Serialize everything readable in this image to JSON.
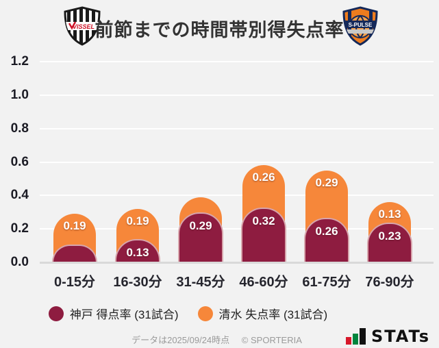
{
  "header": {
    "title": "前節までの時間帯別得失点率",
    "home_logo_text": "VISSEL",
    "away_logo_text": "S-PULSE"
  },
  "chart_data": {
    "type": "bar",
    "stacked": true,
    "title": "前節までの時間帯別得失点率",
    "categories": [
      "0-15分",
      "16-30分",
      "31-45分",
      "46-60分",
      "61-75分",
      "76-90分"
    ],
    "series": [
      {
        "name": "神戸 得点率 (31試合)",
        "color": "#8e1c40",
        "values": [
          0.1,
          0.13,
          0.29,
          0.32,
          0.26,
          0.23
        ],
        "labels": [
          null,
          "0.13",
          "0.29",
          "0.32",
          "0.26",
          "0.23"
        ]
      },
      {
        "name": "清水 失点率 (31試合)",
        "color": "#f6873a",
        "values": [
          0.19,
          0.19,
          0.1,
          0.26,
          0.29,
          0.13
        ],
        "labels": [
          "0.19",
          "0.19",
          null,
          "0.26",
          "0.29",
          "0.13"
        ]
      }
    ],
    "y_ticks": [
      "0.0",
      "0.2",
      "0.4",
      "0.6",
      "0.8",
      "1.0",
      "1.2"
    ],
    "ylim": [
      0,
      1.2
    ],
    "grid": true,
    "legend_position": "bottom"
  },
  "colors": {
    "background": "#f2f2f2",
    "grid": "#ffffff",
    "baseline": "#d9d9d9",
    "kobe_red": "#8e1c40",
    "shimizu_orange": "#f6873a"
  },
  "footer": {
    "note": "データは2025/09/24時点",
    "copyright": "© SPORTERIA",
    "brand": "STATs"
  }
}
